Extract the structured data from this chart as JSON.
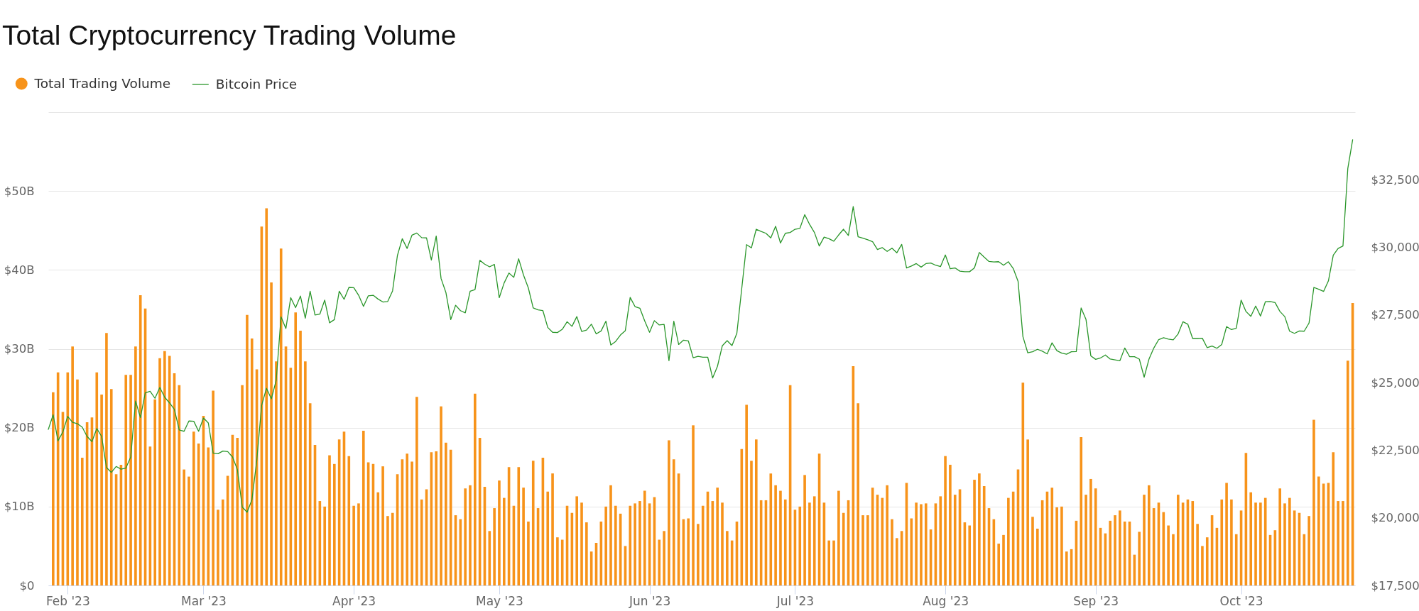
{
  "chart_data": {
    "type": "bar",
    "title": "Total Cryptocurrency Trading Volume",
    "x": [
      "2023-01-28",
      "2023-01-29",
      "2023-01-30",
      "2023-01-31",
      "2023-02-01",
      "2023-02-02",
      "2023-02-03",
      "2023-02-04",
      "2023-02-05",
      "2023-02-06",
      "2023-02-07",
      "2023-02-08",
      "2023-02-09",
      "2023-02-10",
      "2023-02-11",
      "2023-02-12",
      "2023-02-13",
      "2023-02-14",
      "2023-02-15",
      "2023-02-16",
      "2023-02-17",
      "2023-02-18",
      "2023-02-19",
      "2023-02-20",
      "2023-02-21",
      "2023-02-22",
      "2023-02-23",
      "2023-02-24",
      "2023-02-25",
      "2023-02-26",
      "2023-02-27",
      "2023-02-28",
      "2023-03-01",
      "2023-03-02",
      "2023-03-03",
      "2023-03-04",
      "2023-03-05",
      "2023-03-06",
      "2023-03-07",
      "2023-03-08",
      "2023-03-09",
      "2023-03-10",
      "2023-03-11",
      "2023-03-12",
      "2023-03-13",
      "2023-03-14",
      "2023-03-15",
      "2023-03-16",
      "2023-03-17",
      "2023-03-18",
      "2023-03-19",
      "2023-03-20",
      "2023-03-21",
      "2023-03-22",
      "2023-03-23",
      "2023-03-24",
      "2023-03-25",
      "2023-03-26",
      "2023-03-27",
      "2023-03-28",
      "2023-03-29",
      "2023-03-30",
      "2023-03-31",
      "2023-04-01",
      "2023-04-02",
      "2023-04-03",
      "2023-04-04",
      "2023-04-05",
      "2023-04-06",
      "2023-04-07",
      "2023-04-08",
      "2023-04-09",
      "2023-04-10",
      "2023-04-11",
      "2023-04-12",
      "2023-04-13",
      "2023-04-14",
      "2023-04-15",
      "2023-04-16",
      "2023-04-17",
      "2023-04-18",
      "2023-04-19",
      "2023-04-20",
      "2023-04-21",
      "2023-04-22",
      "2023-04-23",
      "2023-04-24",
      "2023-04-25",
      "2023-04-26",
      "2023-04-27",
      "2023-04-28",
      "2023-04-29",
      "2023-04-30",
      "2023-05-01",
      "2023-05-02",
      "2023-05-03",
      "2023-05-04",
      "2023-05-05",
      "2023-05-06",
      "2023-05-07",
      "2023-05-08",
      "2023-05-09",
      "2023-05-10",
      "2023-05-11",
      "2023-05-12",
      "2023-05-13",
      "2023-05-14",
      "2023-05-15",
      "2023-05-16",
      "2023-05-17",
      "2023-05-18",
      "2023-05-19",
      "2023-05-20",
      "2023-05-21",
      "2023-05-22",
      "2023-05-23",
      "2023-05-24",
      "2023-05-25",
      "2023-05-26",
      "2023-05-27",
      "2023-05-28",
      "2023-05-29",
      "2023-05-30",
      "2023-05-31",
      "2023-06-01",
      "2023-06-02",
      "2023-06-03",
      "2023-06-04",
      "2023-06-05",
      "2023-06-06",
      "2023-06-07",
      "2023-06-08",
      "2023-06-09",
      "2023-06-10",
      "2023-06-11",
      "2023-06-12",
      "2023-06-13",
      "2023-06-14",
      "2023-06-15",
      "2023-06-16",
      "2023-06-17",
      "2023-06-18",
      "2023-06-19",
      "2023-06-20",
      "2023-06-21",
      "2023-06-22",
      "2023-06-23",
      "2023-06-24",
      "2023-06-25",
      "2023-06-26",
      "2023-06-27",
      "2023-06-28",
      "2023-06-29",
      "2023-06-30",
      "2023-07-01",
      "2023-07-02",
      "2023-07-03",
      "2023-07-04",
      "2023-07-05",
      "2023-07-06",
      "2023-07-07",
      "2023-07-08",
      "2023-07-09",
      "2023-07-10",
      "2023-07-11",
      "2023-07-12",
      "2023-07-13",
      "2023-07-14",
      "2023-07-15",
      "2023-07-16",
      "2023-07-17",
      "2023-07-18",
      "2023-07-19",
      "2023-07-20",
      "2023-07-21",
      "2023-07-22",
      "2023-07-23",
      "2023-07-24",
      "2023-07-25",
      "2023-07-26",
      "2023-07-27",
      "2023-07-28",
      "2023-07-29",
      "2023-07-30",
      "2023-07-31",
      "2023-08-01",
      "2023-08-02",
      "2023-08-03",
      "2023-08-04",
      "2023-08-05",
      "2023-08-06",
      "2023-08-07",
      "2023-08-08",
      "2023-08-09",
      "2023-08-10",
      "2023-08-11",
      "2023-08-12",
      "2023-08-13",
      "2023-08-14",
      "2023-08-15",
      "2023-08-16",
      "2023-08-17",
      "2023-08-18",
      "2023-08-19",
      "2023-08-20",
      "2023-08-21",
      "2023-08-22",
      "2023-08-23",
      "2023-08-24",
      "2023-08-25",
      "2023-08-26",
      "2023-08-27",
      "2023-08-28",
      "2023-08-29",
      "2023-08-30",
      "2023-08-31",
      "2023-09-01",
      "2023-09-02",
      "2023-09-03",
      "2023-09-04",
      "2023-09-05",
      "2023-09-06",
      "2023-09-07",
      "2023-09-08",
      "2023-09-09",
      "2023-09-10",
      "2023-09-11",
      "2023-09-12",
      "2023-09-13",
      "2023-09-14",
      "2023-09-15",
      "2023-09-16",
      "2023-09-17",
      "2023-09-18",
      "2023-09-19",
      "2023-09-20",
      "2023-09-21",
      "2023-09-22",
      "2023-09-23",
      "2023-09-24",
      "2023-09-25",
      "2023-09-26",
      "2023-09-27",
      "2023-09-28",
      "2023-09-29",
      "2023-09-30",
      "2023-10-01",
      "2023-10-02",
      "2023-10-03",
      "2023-10-04",
      "2023-10-05",
      "2023-10-06",
      "2023-10-07",
      "2023-10-08",
      "2023-10-09",
      "2023-10-10",
      "2023-10-11",
      "2023-10-12",
      "2023-10-13",
      "2023-10-14",
      "2023-10-15",
      "2023-10-16",
      "2023-10-17",
      "2023-10-18",
      "2023-10-19",
      "2023-10-20",
      "2023-10-21",
      "2023-10-22",
      "2023-10-23",
      "2023-10-24"
    ],
    "series": [
      {
        "name": "Total Trading Volume",
        "color": "#f7931a",
        "values": [
          null,
          24.5,
          27.0,
          22.0,
          27.0,
          30.3,
          26.1,
          16.2,
          20.7,
          21.3,
          27.0,
          24.2,
          32.0,
          24.9,
          14.1,
          15.3,
          26.7,
          26.7,
          30.3,
          36.8,
          35.1,
          17.6,
          23.6,
          28.8,
          29.7,
          29.1,
          26.9,
          25.4,
          14.7,
          13.8,
          19.5,
          18.0,
          21.5,
          17.5,
          24.7,
          9.6,
          10.9,
          13.9,
          19.1,
          18.7,
          25.4,
          34.3,
          31.3,
          27.4,
          45.5,
          47.8,
          38.4,
          28.4,
          42.7,
          30.3,
          27.6,
          34.6,
          32.3,
          28.4,
          23.1,
          17.8,
          10.7,
          10.0,
          16.5,
          15.4,
          18.5,
          19.5,
          16.4,
          10.1,
          10.4,
          19.6,
          15.6,
          15.4,
          11.8,
          15.1,
          8.8,
          9.2,
          14.1,
          16.0,
          16.7,
          15.7,
          23.9,
          10.9,
          12.2,
          16.9,
          17.0,
          22.7,
          18.1,
          17.2,
          8.9,
          8.4,
          12.3,
          12.7,
          24.3,
          18.7,
          12.5,
          6.9,
          9.8,
          13.3,
          11.1,
          15.0,
          10.1,
          15.0,
          12.4,
          8.1,
          15.8,
          9.8,
          16.2,
          11.9,
          14.2,
          6.1,
          5.8,
          10.1,
          9.2,
          11.3,
          10.5,
          8.0,
          4.3,
          5.4,
          8.1,
          10.0,
          12.7,
          10.1,
          9.1,
          5.0,
          10.1,
          10.4,
          10.7,
          12.0,
          10.4,
          11.2,
          5.8,
          6.9,
          18.4,
          16.0,
          14.2,
          8.4,
          8.5,
          20.3,
          7.8,
          10.1,
          11.9,
          10.7,
          12.4,
          10.5,
          6.9,
          5.7,
          8.1,
          17.3,
          22.9,
          15.8,
          18.5,
          10.8,
          10.8,
          14.2,
          12.7,
          12.0,
          10.9,
          25.4,
          9.6,
          10.0,
          14.0,
          10.5,
          11.3,
          16.7,
          10.5,
          5.7,
          5.7,
          12.0,
          9.2,
          10.8,
          27.8,
          23.1,
          8.9,
          8.9,
          12.4,
          11.5,
          11.1,
          12.7,
          8.4,
          6.0,
          6.9,
          13.0,
          8.5,
          10.5,
          10.3,
          10.4,
          7.1,
          10.4,
          11.3,
          16.4,
          15.3,
          11.5,
          12.2,
          8.0,
          7.6,
          13.4,
          14.2,
          12.6,
          9.8,
          8.4,
          5.3,
          6.4,
          11.1,
          11.9,
          14.7,
          25.7,
          18.5,
          8.7,
          7.2,
          10.8,
          11.9,
          12.4,
          9.9,
          10.0,
          4.3,
          4.6,
          8.2,
          18.8,
          11.5,
          13.5,
          12.3,
          7.3,
          6.6,
          8.2,
          8.9,
          9.5,
          8.1,
          8.1,
          3.9,
          6.8,
          11.5,
          12.7,
          9.8,
          10.5,
          9.3,
          7.6,
          6.5,
          11.5,
          10.5,
          10.9,
          10.7,
          7.8,
          5.0,
          6.1,
          8.9,
          7.3,
          10.9,
          13.0,
          10.9,
          6.5,
          9.5,
          16.8,
          11.8,
          10.5,
          10.5,
          11.1,
          6.4,
          7.0,
          12.3,
          10.4,
          11.1,
          9.5,
          9.2,
          6.5,
          8.8,
          21.0,
          13.8,
          12.9,
          13.0,
          16.9,
          10.7,
          10.7,
          28.5,
          35.8
        ]
      },
      {
        "name": "Bitcoin Price",
        "type": "line",
        "axis": "y2",
        "color": "#2a962a",
        "values": [
          23270,
          23810,
          22850,
          23170,
          23750,
          23530,
          23480,
          23350,
          23010,
          22820,
          23300,
          23010,
          21860,
          21680,
          21900,
          21800,
          21840,
          22250,
          24320,
          23710,
          24620,
          24680,
          24420,
          24820,
          24460,
          24250,
          24010,
          23250,
          23200,
          23580,
          23570,
          23200,
          23690,
          23510,
          22390,
          22370,
          22470,
          22450,
          22250,
          21780,
          20400,
          20210,
          20670,
          22130,
          24160,
          24790,
          24400,
          25080,
          27430,
          27000,
          28140,
          27770,
          28200,
          27380,
          28380,
          27500,
          27530,
          28050,
          27210,
          27330,
          28380,
          28080,
          28520,
          28510,
          28230,
          27820,
          28210,
          28230,
          28090,
          27980,
          28000,
          28390,
          29700,
          30320,
          29960,
          30450,
          30530,
          30360,
          30350,
          29530,
          30420,
          28850,
          28330,
          27330,
          27860,
          27660,
          27580,
          28380,
          28440,
          29520,
          29380,
          29280,
          29370,
          28140,
          28680,
          29050,
          28890,
          29580,
          28980,
          28500,
          27760,
          27690,
          27660,
          27040,
          26860,
          26850,
          26970,
          27250,
          27080,
          27440,
          26890,
          26940,
          27160,
          26800,
          26910,
          27270,
          26390,
          26520,
          26760,
          26920,
          28150,
          27810,
          27750,
          27280,
          26860,
          27290,
          27130,
          27150,
          25810,
          27270,
          26410,
          26570,
          26540,
          25920,
          25970,
          25940,
          25940,
          25170,
          25600,
          26360,
          26550,
          26370,
          26820,
          28460,
          30100,
          29980,
          30670,
          30590,
          30520,
          30350,
          30780,
          30160,
          30520,
          30550,
          30670,
          30700,
          31210,
          30850,
          30550,
          30050,
          30380,
          30320,
          30230,
          30460,
          30670,
          30440,
          31510,
          30390,
          30340,
          30280,
          30210,
          29920,
          29990,
          29850,
          29970,
          29800,
          30110,
          29240,
          29310,
          29400,
          29270,
          29400,
          29420,
          29340,
          29290,
          29720,
          29210,
          29240,
          29120,
          29100,
          29100,
          29240,
          29810,
          29640,
          29480,
          29460,
          29470,
          29340,
          29470,
          29220,
          28740,
          26700,
          26100,
          26140,
          26230,
          26160,
          26060,
          26470,
          26180,
          26090,
          26050,
          26140,
          26150,
          27760,
          27340,
          25990,
          25860,
          25910,
          26020,
          25870,
          25840,
          25810,
          26280,
          25960,
          25960,
          25870,
          25200,
          25870,
          26280,
          26590,
          26660,
          26610,
          26580,
          26800,
          27250,
          27160,
          26630,
          26630,
          26640,
          26290,
          26350,
          26270,
          26410,
          27070,
          26960,
          27010,
          28050,
          27630,
          27450,
          27830,
          27460,
          27990,
          28000,
          27960,
          27630,
          27440,
          26900,
          26820,
          26910,
          26900,
          27200,
          28520,
          28450,
          28370,
          28760,
          29710,
          29960,
          30050,
          32920,
          33980
        ]
      }
    ],
    "xlim": [
      "2023-01-28",
      "2023-10-24T12:00"
    ],
    "xticks": [
      {
        "value": "2023-02-01",
        "label": "Feb '23"
      },
      {
        "value": "2023-03-01",
        "label": "Mar '23"
      },
      {
        "value": "2023-04-01",
        "label": "Apr '23"
      },
      {
        "value": "2023-05-01",
        "label": "May '23"
      },
      {
        "value": "2023-06-01",
        "label": "Jun '23"
      },
      {
        "value": "2023-07-01",
        "label": "Jul '23"
      },
      {
        "value": "2023-08-01",
        "label": "Aug '23"
      },
      {
        "value": "2023-09-01",
        "label": "Sep '23"
      },
      {
        "value": "2023-10-01",
        "label": "Oct '23"
      }
    ],
    "ylim": [
      0,
      60
    ],
    "yticks": [
      {
        "value": 0,
        "label": "$0"
      },
      {
        "value": 10,
        "label": "$10B"
      },
      {
        "value": 20,
        "label": "$20B"
      },
      {
        "value": 30,
        "label": "$30B"
      },
      {
        "value": 40,
        "label": "$40B"
      },
      {
        "value": 50,
        "label": "$50B"
      },
      {
        "value": 60,
        "label": null
      }
    ],
    "y2lim": [
      17500,
      35000
    ],
    "y2ticks": [
      {
        "value": 17500,
        "label": "$17,500"
      },
      {
        "value": 20000,
        "label": "$20,000"
      },
      {
        "value": 22500,
        "label": "$22,500"
      },
      {
        "value": 25000,
        "label": "$25,000"
      },
      {
        "value": 27500,
        "label": "$27,500"
      },
      {
        "value": 30000,
        "label": "$30,000"
      },
      {
        "value": 32500,
        "label": "$32,500"
      }
    ],
    "grid": "y",
    "legend": "top left"
  }
}
